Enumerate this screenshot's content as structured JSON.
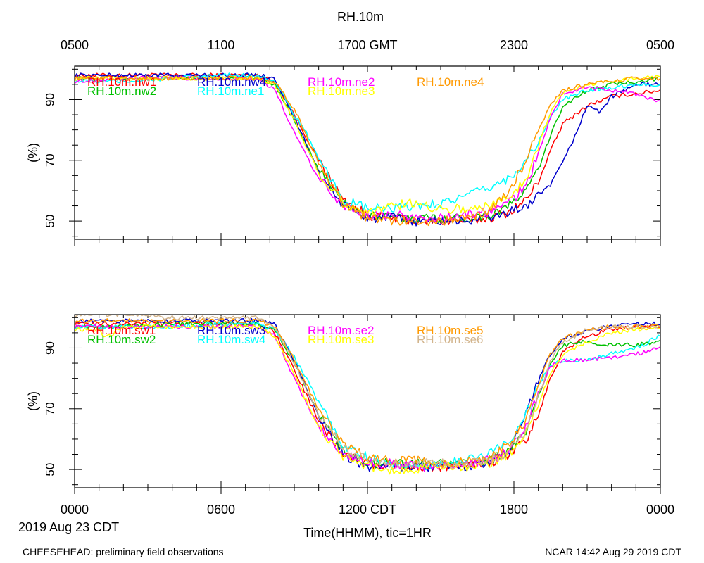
{
  "title": "RH.10m",
  "top_axis": {
    "ticks": [
      "0500",
      "1100",
      "1700 GMT",
      "2300",
      "0500"
    ]
  },
  "bottom_axis": {
    "ticks": [
      "0000",
      "0600",
      "1200 CDT",
      "1800",
      "0000"
    ],
    "label": "Time(HHMM), tic=1HR",
    "date": "2019 Aug 23 CDT"
  },
  "footer": {
    "left": "CHEESEHEAD: preliminary field observations",
    "right": "NCAR 14:42 Aug 29 2019 CDT"
  },
  "chart_data": [
    {
      "type": "line",
      "ylabel": "(%)",
      "xlim": [
        0,
        24
      ],
      "ylim": [
        44,
        101
      ],
      "yticks": [
        50,
        70,
        90
      ],
      "grid": false,
      "legend": "top-left",
      "x_unit": "hours since 0000 CDT (2019 Aug 23)",
      "series": [
        {
          "name": "RH.10m.nw1",
          "color": "#ff0000",
          "x": [
            0,
            2,
            4,
            6,
            7.5,
            8.2,
            9,
            10,
            11,
            12,
            13,
            14,
            15,
            16,
            17,
            17.8,
            18.5,
            19,
            19.5,
            20,
            21,
            22,
            23,
            24
          ],
          "y": [
            98,
            98,
            98,
            98,
            98,
            96,
            85,
            70,
            57,
            52,
            51,
            50,
            50,
            50,
            51,
            53,
            57,
            63,
            73,
            82,
            88,
            91,
            92,
            93
          ]
        },
        {
          "name": "RH.10m.nw2",
          "color": "#00c000",
          "x": [
            0,
            2,
            4,
            6,
            7.5,
            8.2,
            9,
            10,
            11,
            12,
            13,
            14,
            15,
            16,
            17,
            17.8,
            18.5,
            19,
            19.5,
            20,
            21,
            22,
            23,
            24
          ],
          "y": [
            97,
            97,
            97,
            97,
            97,
            95,
            83,
            67,
            56,
            52,
            51,
            51,
            51,
            51,
            52,
            55,
            60,
            67,
            78,
            88,
            93,
            95,
            96,
            97
          ]
        },
        {
          "name": "RH.10m.nw4",
          "color": "#0000cc",
          "x": [
            0,
            2,
            4,
            6,
            7.5,
            8.2,
            9,
            10,
            11,
            12,
            13,
            14,
            15,
            16,
            17,
            17.8,
            18.5,
            19,
            19.5,
            20,
            20.5,
            21,
            21.5,
            22,
            23,
            24
          ],
          "y": [
            98,
            98,
            98,
            98,
            98,
            97,
            84,
            66,
            55,
            51,
            51,
            50,
            50,
            50,
            51,
            53,
            55,
            58,
            62,
            69,
            78,
            88,
            86,
            91,
            95,
            95
          ]
        },
        {
          "name": "RH.10m.ne1",
          "color": "#00ffff",
          "x": [
            0,
            2,
            4,
            6,
            7.5,
            8.2,
            9,
            9.5,
            10,
            11,
            12,
            13,
            14,
            15,
            16,
            17,
            17.8,
            18.5,
            19,
            19.5,
            20,
            21,
            22,
            23,
            24
          ],
          "y": [
            96,
            96,
            97,
            98,
            98,
            96,
            85,
            79,
            70,
            57,
            54,
            54,
            55,
            56,
            58,
            61,
            64,
            70,
            76,
            84,
            90,
            93,
            94,
            95,
            95
          ]
        },
        {
          "name": "RH.10m.ne2",
          "color": "#ff00ff",
          "x": [
            0,
            2,
            4,
            6,
            7.5,
            8.2,
            9,
            10,
            11,
            12,
            13,
            14,
            15,
            16,
            17,
            17.8,
            18.5,
            19,
            19.5,
            20,
            21,
            22,
            23,
            24
          ],
          "y": [
            96,
            97,
            97,
            97,
            97,
            93,
            79,
            64,
            55,
            52,
            52,
            51,
            51,
            52,
            53,
            56,
            62,
            72,
            84,
            92,
            94,
            93,
            92,
            89
          ]
        },
        {
          "name": "RH.10m.ne3",
          "color": "#ffff00",
          "x": [
            0,
            2,
            4,
            6,
            7.5,
            8.2,
            9,
            10,
            11,
            12,
            13,
            14,
            15,
            16,
            17,
            17.8,
            18.5,
            19,
            19.5,
            20,
            21,
            22,
            23,
            24
          ],
          "y": [
            97,
            97,
            97,
            97,
            97,
            95,
            83,
            66,
            56,
            53,
            55,
            56,
            54,
            54,
            55,
            58,
            64,
            75,
            86,
            92,
            95,
            96,
            97,
            98
          ]
        },
        {
          "name": "RH.10m.ne4",
          "color": "#ff9900",
          "x": [
            0,
            2,
            4,
            6,
            7.5,
            8.2,
            9,
            10,
            11,
            12,
            13,
            14,
            15,
            16,
            17,
            17.8,
            18.5,
            19,
            19.5,
            20,
            21,
            22,
            23,
            24
          ],
          "y": [
            97,
            97,
            97,
            97,
            97,
            96,
            87,
            69,
            56,
            51,
            50,
            50,
            50,
            51,
            53,
            60,
            70,
            80,
            88,
            93,
            95,
            96,
            97,
            97
          ]
        }
      ]
    },
    {
      "type": "line",
      "ylabel": "(%)",
      "xlim": [
        0,
        24
      ],
      "ylim": [
        44,
        101
      ],
      "yticks": [
        50,
        70,
        90
      ],
      "grid": false,
      "legend": "top-left",
      "x_unit": "hours since 0000 CDT (2019 Aug 23)",
      "series": [
        {
          "name": "RH.10m.sw1",
          "color": "#ff0000",
          "x": [
            0,
            2,
            4,
            6,
            7.5,
            8.2,
            9,
            10,
            11,
            12,
            13,
            14,
            15,
            16,
            17,
            17.8,
            18.5,
            19,
            19.5,
            20,
            21,
            22,
            23,
            24
          ],
          "y": [
            98,
            98,
            98,
            98,
            98,
            95,
            83,
            66,
            55,
            52,
            51,
            51,
            51,
            51,
            52,
            55,
            60,
            68,
            80,
            89,
            94,
            96,
            97,
            97
          ]
        },
        {
          "name": "RH.10m.sw2",
          "color": "#00c000",
          "x": [
            0,
            2,
            4,
            6,
            7.5,
            8.2,
            9,
            10,
            11,
            12,
            13,
            14,
            15,
            16,
            17,
            17.8,
            18.5,
            19,
            19.5,
            20,
            21,
            22,
            23,
            24
          ],
          "y": [
            97,
            97,
            98,
            98,
            98,
            96,
            85,
            68,
            56,
            52,
            52,
            52,
            52,
            52,
            53,
            56,
            63,
            74,
            85,
            91,
            92,
            91,
            91,
            92
          ]
        },
        {
          "name": "RH.10m.sw3",
          "color": "#0000cc",
          "x": [
            0,
            2,
            4,
            6,
            7.5,
            8.2,
            9,
            10,
            11,
            12,
            13,
            14,
            15,
            16,
            17,
            17.8,
            18.5,
            19,
            19.5,
            20,
            21,
            22,
            23,
            24
          ],
          "y": [
            99,
            99,
            99,
            99,
            99,
            98,
            86,
            68,
            55,
            51,
            51,
            51,
            51,
            51,
            52,
            56,
            68,
            80,
            88,
            93,
            96,
            97,
            98,
            98
          ]
        },
        {
          "name": "RH.10m.sw4",
          "color": "#00ffff",
          "x": [
            0,
            2,
            4,
            6,
            7.5,
            8.2,
            9,
            9.5,
            10,
            11,
            12,
            13,
            14,
            15,
            16,
            17,
            17.8,
            18.5,
            19,
            19.5,
            20,
            21,
            22,
            23,
            24
          ],
          "y": [
            97,
            97,
            97,
            98,
            98,
            96,
            87,
            80,
            72,
            58,
            54,
            51,
            51,
            52,
            53,
            55,
            59,
            68,
            78,
            84,
            86,
            86,
            88,
            90,
            94
          ]
        },
        {
          "name": "RH.10m.se2",
          "color": "#ff00ff",
          "x": [
            0,
            2,
            4,
            6,
            7.5,
            8.2,
            9,
            10,
            11,
            12,
            13,
            14,
            15,
            16,
            17,
            17.8,
            18.5,
            19,
            19.5,
            20,
            21,
            22,
            23,
            24
          ],
          "y": [
            97,
            97,
            97,
            97,
            97,
            94,
            80,
            64,
            55,
            52,
            52,
            51,
            51,
            52,
            53,
            56,
            64,
            75,
            84,
            86,
            86,
            87,
            88,
            90
          ]
        },
        {
          "name": "RH.10m.se3",
          "color": "#ffff00",
          "x": [
            0,
            1,
            1.2,
            2,
            3,
            4,
            6,
            7.5,
            8.2,
            9,
            10,
            11,
            12,
            13,
            14,
            15,
            16,
            17,
            17.8,
            18.5,
            19,
            19.5,
            20,
            21,
            22,
            23,
            24
          ],
          "y": [
            96,
            96,
            93,
            97,
            97,
            97,
            97,
            97,
            94,
            81,
            64,
            54,
            51,
            50,
            50,
            51,
            51,
            52,
            55,
            62,
            72,
            82,
            88,
            92,
            95,
            96,
            97
          ]
        },
        {
          "name": "RH.10m.se5",
          "color": "#ff9900",
          "x": [
            0,
            2,
            4,
            6,
            7.5,
            8.2,
            9,
            10,
            11,
            12,
            13,
            14,
            15,
            16,
            17,
            17.8,
            18.5,
            19,
            19.5,
            20,
            21,
            22,
            23,
            24
          ],
          "y": [
            99,
            99,
            99,
            99,
            99,
            97,
            86,
            70,
            58,
            54,
            53,
            53,
            52,
            53,
            54,
            58,
            66,
            78,
            88,
            93,
            96,
            97,
            97,
            97
          ]
        },
        {
          "name": "RH.10m.se6",
          "color": "#d2b48c",
          "x": [
            0,
            2,
            4,
            6,
            7.5,
            8.2,
            9,
            10,
            11,
            12,
            13,
            14,
            15,
            16,
            17,
            17.8,
            18.5,
            19,
            19.5,
            20,
            21,
            22,
            23,
            24
          ],
          "y": [
            101,
            101,
            100,
            100,
            100,
            97,
            85,
            68,
            57,
            53,
            52,
            52,
            52,
            52,
            53,
            56,
            63,
            74,
            86,
            92,
            96,
            97,
            97,
            97
          ]
        }
      ]
    }
  ]
}
